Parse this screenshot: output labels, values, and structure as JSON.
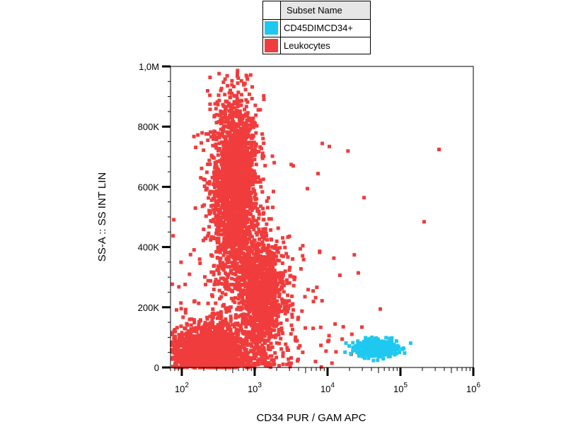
{
  "legend": {
    "header": "Subset Name",
    "items": [
      {
        "label": "CD45DIMCD34+",
        "color": "#1ec8f0"
      },
      {
        "label": "Leukocytes",
        "color": "#f03c3c"
      }
    ]
  },
  "chart_data": {
    "type": "scatter",
    "xlabel": "CD34 PUR / GAM APC",
    "ylabel": "SS-A :: SS INT LIN",
    "x_scale": "log",
    "xlim": [
      70,
      1000000
    ],
    "ylim": [
      0,
      1000000
    ],
    "x_ticks": [
      {
        "value": 100,
        "base": "10",
        "exp": "2"
      },
      {
        "value": 1000,
        "base": "10",
        "exp": "3"
      },
      {
        "value": 10000,
        "base": "10",
        "exp": "4"
      },
      {
        "value": 100000,
        "base": "10",
        "exp": "5"
      },
      {
        "value": 1000000,
        "base": "10",
        "exp": "6"
      }
    ],
    "y_ticks": [
      {
        "value": 0,
        "label": "0"
      },
      {
        "value": 200000,
        "label": "200K"
      },
      {
        "value": 400000,
        "label": "400K"
      },
      {
        "value": 600000,
        "label": "600K"
      },
      {
        "value": 800000,
        "label": "800K"
      },
      {
        "value": 1000000,
        "label": "1,0M"
      }
    ],
    "grid": false,
    "legend_position": "top-center",
    "series": [
      {
        "name": "Leukocytes",
        "color": "#f03c3c",
        "clusters": [
          {
            "x_center": 500,
            "x_spread_decades": 0.16,
            "y_center": 600000,
            "y_spread": 150000,
            "count": 2200
          },
          {
            "x_center": 1200,
            "x_spread_decades": 0.15,
            "y_center": 250000,
            "y_spread": 90000,
            "count": 1100
          },
          {
            "x_center": 220,
            "x_spread_decades": 0.28,
            "y_center": 60000,
            "y_spread": 45000,
            "count": 1400
          },
          {
            "x_center": 800,
            "x_spread_decades": 0.5,
            "y_center": 180000,
            "y_spread": 150000,
            "count": 350
          }
        ],
        "outliers": [
          {
            "x": 320000,
            "y": 730000
          },
          {
            "x": 200000,
            "y": 490000
          },
          {
            "x": 30000,
            "y": 570000
          },
          {
            "x": 18000,
            "y": 725000
          },
          {
            "x": 10000,
            "y": 740000
          },
          {
            "x": 28000,
            "y": 140000
          },
          {
            "x": 50000,
            "y": 200000
          },
          {
            "x": 25000,
            "y": 320000
          },
          {
            "x": 22000,
            "y": 380000
          },
          {
            "x": 5000,
            "y": 600000
          },
          {
            "x": 8000,
            "y": 750000
          },
          {
            "x": 4000,
            "y": 400000
          },
          {
            "x": 3000,
            "y": 680000
          },
          {
            "x": 6000,
            "y": 260000
          },
          {
            "x": 7000,
            "y": 650000
          },
          {
            "x": 12000,
            "y": 150000
          },
          {
            "x": 15000,
            "y": 100000
          },
          {
            "x": 9000,
            "y": 60000
          },
          {
            "x": 20000,
            "y": 50000
          }
        ]
      },
      {
        "name": "CD45DIMCD34+",
        "color": "#1ec8f0",
        "clusters": [
          {
            "x_center": 45000,
            "x_spread_decades": 0.14,
            "y_center": 70000,
            "y_spread": 14000,
            "count": 500
          }
        ],
        "outliers": []
      }
    ]
  }
}
